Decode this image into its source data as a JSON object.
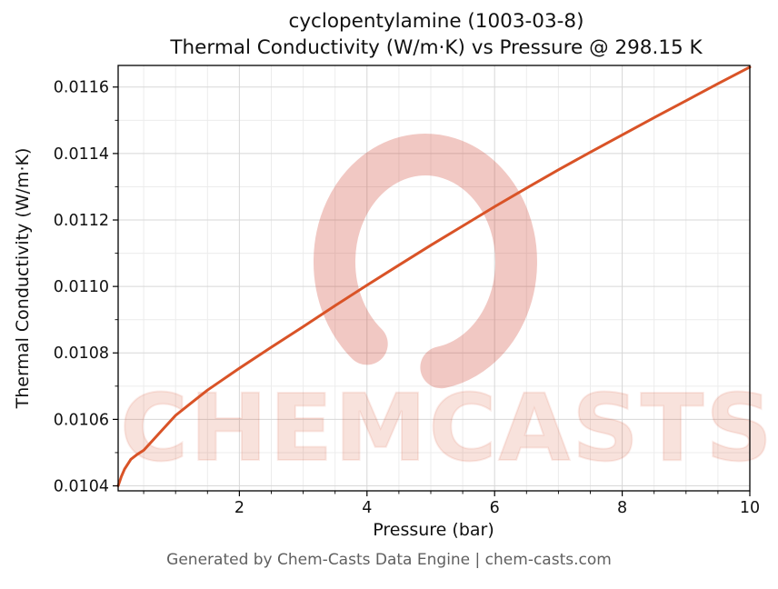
{
  "page": {
    "background": "#ffffff"
  },
  "watermark": {
    "text": "CHEMCASTS",
    "text_color": "rgba(214,72,38,0.16)",
    "ring_color": "rgba(205,56,38,0.28)"
  },
  "footer": "Generated by Chem-Casts Data Engine | chem-casts.com",
  "chart_data": {
    "type": "line",
    "title_line1": "cyclopentylamine (1003-03-8)",
    "title_line2": "Thermal Conductivity (W/m·K) vs Pressure @ 298.15 K",
    "compound": "cyclopentylamine",
    "cas_number": "1003-03-8",
    "temperature_K": "298.15",
    "xlabel": "Pressure (bar)",
    "ylabel": "Thermal Conductivity (W/m·K)",
    "xlim": [
      0.1,
      10
    ],
    "ylim": [
      0.010385,
      0.011665
    ],
    "x_ticks": [
      2,
      4,
      6,
      8,
      10
    ],
    "y_ticks": [
      0.0104,
      0.0106,
      0.0108,
      0.011,
      0.0112,
      0.0114,
      0.0116
    ],
    "x_minor_step": 0.5,
    "y_minor_step": 0.0001,
    "grid": true,
    "legend": false,
    "line_color": "#d95327",
    "grid_major_color": "#d7d7d7",
    "grid_minor_color": "#ececec",
    "series": [
      {
        "name": "thermal_conductivity_W_per_mK",
        "x": [
          0.1,
          0.15,
          0.2,
          0.3,
          0.4,
          0.5,
          0.6,
          0.8,
          1.0,
          1.25,
          1.5,
          1.75,
          2.0,
          2.5,
          3.0,
          3.5,
          4.0,
          4.5,
          5.0,
          5.5,
          6.0,
          6.5,
          7.0,
          7.5,
          8.0,
          8.5,
          9.0,
          9.5,
          10.0
        ],
        "y": [
          0.0104,
          0.010428,
          0.01045,
          0.01048,
          0.010495,
          0.010507,
          0.010528,
          0.01057,
          0.010612,
          0.01065,
          0.010688,
          0.010721,
          0.010754,
          0.010817,
          0.010879,
          0.010942,
          0.011004,
          0.011064,
          0.011124,
          0.011182,
          0.01124,
          0.011296,
          0.011351,
          0.011404,
          0.011456,
          0.011508,
          0.011559,
          0.01161,
          0.01166
        ]
      }
    ]
  }
}
